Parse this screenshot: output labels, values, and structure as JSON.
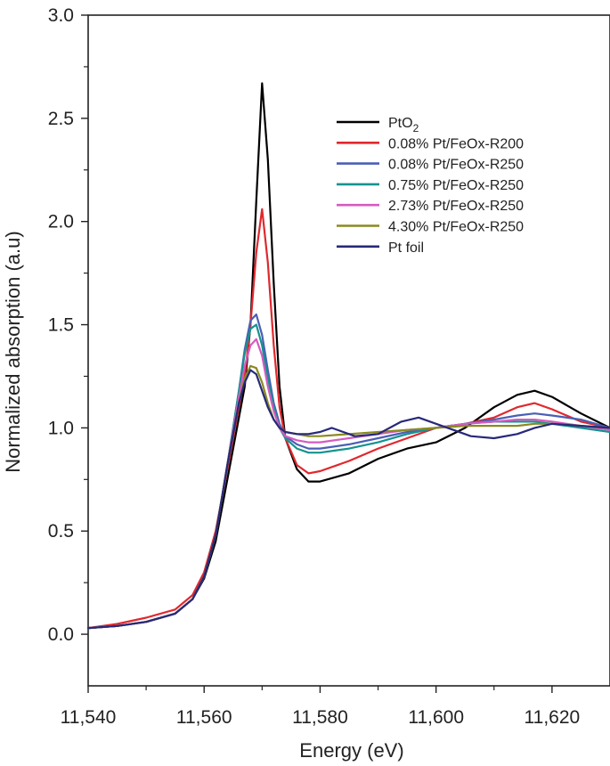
{
  "chart_data": {
    "type": "line",
    "title": "",
    "xlabel": "Energy (eV)",
    "ylabel": "Normalized absorption (a.u)",
    "xlim": [
      11540,
      11630
    ],
    "ylim": [
      -0.25,
      3.0
    ],
    "x_ticks": [
      11540,
      11560,
      11580,
      11600,
      11620
    ],
    "x_tick_labels": [
      "11,540",
      "11,560",
      "11,580",
      "11,600",
      "11,620"
    ],
    "y_ticks": [
      0.0,
      0.5,
      1.0,
      1.5,
      2.0,
      2.5,
      3.0
    ],
    "y_tick_labels": [
      "0.0",
      "0.5",
      "1.0",
      "1.5",
      "2.0",
      "2.5",
      "3.0"
    ],
    "legend_position": "top-right",
    "series": [
      {
        "name": "PtO2",
        "label_main": "PtO",
        "label_sub": "2",
        "color": "#000000",
        "points": [
          [
            11540,
            0.03
          ],
          [
            11545,
            0.04
          ],
          [
            11550,
            0.06
          ],
          [
            11555,
            0.1
          ],
          [
            11558,
            0.17
          ],
          [
            11560,
            0.27
          ],
          [
            11562,
            0.45
          ],
          [
            11564,
            0.75
          ],
          [
            11566,
            1.05
          ],
          [
            11567,
            1.2
          ],
          [
            11568,
            1.5
          ],
          [
            11569,
            2.1
          ],
          [
            11570,
            2.67
          ],
          [
            11571,
            2.3
          ],
          [
            11572,
            1.7
          ],
          [
            11573,
            1.2
          ],
          [
            11574,
            0.95
          ],
          [
            11576,
            0.8
          ],
          [
            11578,
            0.74
          ],
          [
            11580,
            0.74
          ],
          [
            11585,
            0.78
          ],
          [
            11590,
            0.85
          ],
          [
            11595,
            0.9
          ],
          [
            11600,
            0.93
          ],
          [
            11605,
            1.0
          ],
          [
            11610,
            1.1
          ],
          [
            11614,
            1.16
          ],
          [
            11617,
            1.18
          ],
          [
            11620,
            1.15
          ],
          [
            11625,
            1.07
          ],
          [
            11630,
            1.0
          ]
        ]
      },
      {
        "name": "0.08% Pt/FeOx-R200",
        "color": "#e0282e",
        "points": [
          [
            11540,
            0.03
          ],
          [
            11545,
            0.05
          ],
          [
            11550,
            0.08
          ],
          [
            11555,
            0.12
          ],
          [
            11558,
            0.19
          ],
          [
            11560,
            0.3
          ],
          [
            11562,
            0.5
          ],
          [
            11564,
            0.8
          ],
          [
            11566,
            1.1
          ],
          [
            11567,
            1.25
          ],
          [
            11568,
            1.5
          ],
          [
            11569,
            1.85
          ],
          [
            11570,
            2.06
          ],
          [
            11571,
            1.8
          ],
          [
            11572,
            1.4
          ],
          [
            11573,
            1.1
          ],
          [
            11574,
            0.95
          ],
          [
            11576,
            0.82
          ],
          [
            11578,
            0.78
          ],
          [
            11580,
            0.79
          ],
          [
            11585,
            0.84
          ],
          [
            11590,
            0.9
          ],
          [
            11595,
            0.95
          ],
          [
            11600,
            1.0
          ],
          [
            11605,
            1.02
          ],
          [
            11610,
            1.05
          ],
          [
            11614,
            1.1
          ],
          [
            11617,
            1.12
          ],
          [
            11620,
            1.09
          ],
          [
            11625,
            1.03
          ],
          [
            11630,
            1.0
          ]
        ]
      },
      {
        "name": "0.08% Pt/FeOx-R250",
        "color": "#4a5fb5",
        "points": [
          [
            11540,
            0.03
          ],
          [
            11545,
            0.04
          ],
          [
            11550,
            0.06
          ],
          [
            11555,
            0.1
          ],
          [
            11558,
            0.17
          ],
          [
            11560,
            0.28
          ],
          [
            11562,
            0.48
          ],
          [
            11564,
            0.82
          ],
          [
            11566,
            1.18
          ],
          [
            11567,
            1.38
          ],
          [
            11568,
            1.52
          ],
          [
            11569,
            1.55
          ],
          [
            11570,
            1.45
          ],
          [
            11571,
            1.28
          ],
          [
            11572,
            1.12
          ],
          [
            11573,
            1.02
          ],
          [
            11574,
            0.96
          ],
          [
            11576,
            0.92
          ],
          [
            11578,
            0.9
          ],
          [
            11580,
            0.9
          ],
          [
            11585,
            0.92
          ],
          [
            11590,
            0.95
          ],
          [
            11595,
            0.98
          ],
          [
            11600,
            1.0
          ],
          [
            11605,
            1.02
          ],
          [
            11610,
            1.04
          ],
          [
            11614,
            1.06
          ],
          [
            11617,
            1.07
          ],
          [
            11620,
            1.06
          ],
          [
            11625,
            1.04
          ],
          [
            11630,
            1.0
          ]
        ]
      },
      {
        "name": "0.75% Pt/FeOx-R250",
        "color": "#14938f",
        "points": [
          [
            11540,
            0.03
          ],
          [
            11545,
            0.04
          ],
          [
            11550,
            0.06
          ],
          [
            11555,
            0.1
          ],
          [
            11558,
            0.17
          ],
          [
            11560,
            0.28
          ],
          [
            11562,
            0.48
          ],
          [
            11564,
            0.82
          ],
          [
            11566,
            1.18
          ],
          [
            11567,
            1.36
          ],
          [
            11568,
            1.48
          ],
          [
            11569,
            1.5
          ],
          [
            11570,
            1.4
          ],
          [
            11571,
            1.24
          ],
          [
            11572,
            1.1
          ],
          [
            11573,
            1.0
          ],
          [
            11574,
            0.95
          ],
          [
            11576,
            0.9
          ],
          [
            11578,
            0.88
          ],
          [
            11580,
            0.88
          ],
          [
            11585,
            0.9
          ],
          [
            11590,
            0.93
          ],
          [
            11595,
            0.97
          ],
          [
            11600,
            1.0
          ],
          [
            11605,
            1.02
          ],
          [
            11610,
            1.03
          ],
          [
            11614,
            1.03
          ],
          [
            11617,
            1.03
          ],
          [
            11620,
            1.02
          ],
          [
            11625,
            1.0
          ],
          [
            11630,
            0.98
          ]
        ]
      },
      {
        "name": "2.73% Pt/FeOx-R250",
        "color": "#d45bc0",
        "points": [
          [
            11540,
            0.03
          ],
          [
            11545,
            0.04
          ],
          [
            11550,
            0.06
          ],
          [
            11555,
            0.1
          ],
          [
            11558,
            0.17
          ],
          [
            11560,
            0.28
          ],
          [
            11562,
            0.48
          ],
          [
            11564,
            0.82
          ],
          [
            11566,
            1.15
          ],
          [
            11567,
            1.3
          ],
          [
            11568,
            1.4
          ],
          [
            11569,
            1.43
          ],
          [
            11570,
            1.35
          ],
          [
            11571,
            1.2
          ],
          [
            11572,
            1.08
          ],
          [
            11573,
            1.0
          ],
          [
            11574,
            0.96
          ],
          [
            11576,
            0.94
          ],
          [
            11578,
            0.93
          ],
          [
            11580,
            0.93
          ],
          [
            11585,
            0.95
          ],
          [
            11590,
            0.97
          ],
          [
            11595,
            0.99
          ],
          [
            11600,
            1.0
          ],
          [
            11605,
            1.02
          ],
          [
            11610,
            1.03
          ],
          [
            11614,
            1.04
          ],
          [
            11617,
            1.04
          ],
          [
            11620,
            1.03
          ],
          [
            11625,
            1.01
          ],
          [
            11630,
            0.99
          ]
        ]
      },
      {
        "name": "4.30% Pt/FeOx-R250",
        "color": "#8a8a20",
        "points": [
          [
            11540,
            0.03
          ],
          [
            11545,
            0.04
          ],
          [
            11550,
            0.06
          ],
          [
            11555,
            0.1
          ],
          [
            11558,
            0.17
          ],
          [
            11560,
            0.28
          ],
          [
            11562,
            0.48
          ],
          [
            11564,
            0.82
          ],
          [
            11566,
            1.12
          ],
          [
            11567,
            1.24
          ],
          [
            11568,
            1.3
          ],
          [
            11569,
            1.29
          ],
          [
            11570,
            1.22
          ],
          [
            11571,
            1.12
          ],
          [
            11572,
            1.04
          ],
          [
            11573,
            1.0
          ],
          [
            11574,
            0.98
          ],
          [
            11576,
            0.97
          ],
          [
            11578,
            0.96
          ],
          [
            11580,
            0.96
          ],
          [
            11585,
            0.97
          ],
          [
            11590,
            0.98
          ],
          [
            11595,
            0.99
          ],
          [
            11600,
            1.0
          ],
          [
            11605,
            1.01
          ],
          [
            11610,
            1.01
          ],
          [
            11614,
            1.01
          ],
          [
            11617,
            1.02
          ],
          [
            11620,
            1.02
          ],
          [
            11625,
            1.01
          ],
          [
            11630,
            1.0
          ]
        ]
      },
      {
        "name": "Pt foil",
        "color": "#27297a",
        "points": [
          [
            11540,
            0.03
          ],
          [
            11545,
            0.04
          ],
          [
            11550,
            0.06
          ],
          [
            11555,
            0.1
          ],
          [
            11558,
            0.17
          ],
          [
            11560,
            0.28
          ],
          [
            11562,
            0.48
          ],
          [
            11564,
            0.82
          ],
          [
            11566,
            1.12
          ],
          [
            11567,
            1.22
          ],
          [
            11568,
            1.28
          ],
          [
            11569,
            1.26
          ],
          [
            11570,
            1.18
          ],
          [
            11571,
            1.1
          ],
          [
            11572,
            1.04
          ],
          [
            11573,
            1.0
          ],
          [
            11574,
            0.98
          ],
          [
            11576,
            0.97
          ],
          [
            11578,
            0.97
          ],
          [
            11580,
            0.98
          ],
          [
            11582,
            1.0
          ],
          [
            11584,
            0.98
          ],
          [
            11586,
            0.96
          ],
          [
            11590,
            0.97
          ],
          [
            11594,
            1.03
          ],
          [
            11597,
            1.05
          ],
          [
            11600,
            1.02
          ],
          [
            11603,
            0.99
          ],
          [
            11606,
            0.96
          ],
          [
            11610,
            0.95
          ],
          [
            11614,
            0.97
          ],
          [
            11617,
            1.0
          ],
          [
            11620,
            1.02
          ],
          [
            11625,
            1.01
          ],
          [
            11630,
            1.0
          ]
        ]
      }
    ]
  }
}
